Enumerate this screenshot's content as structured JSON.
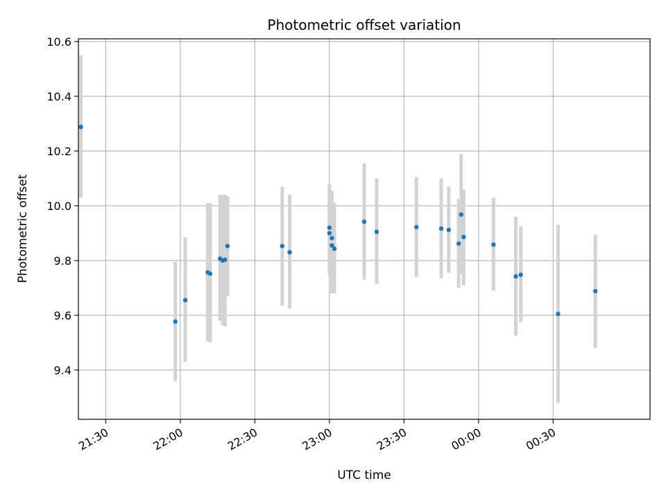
{
  "chart_data": {
    "type": "scatter",
    "title": "Photometric offset variation",
    "xlabel": "UTC time",
    "ylabel": "Photometric offset",
    "xlim": [
      "21:19",
      "01:09"
    ],
    "ylim": [
      9.22,
      10.61
    ],
    "grid": true,
    "x_ticks": [
      "21:30",
      "22:00",
      "22:30",
      "23:00",
      "23:30",
      "00:00",
      "00:30"
    ],
    "y_ticks": [
      9.4,
      9.6,
      9.8,
      10.0,
      10.2,
      10.4,
      10.6
    ],
    "y_tick_labels": [
      "9.4",
      "9.6",
      "9.8",
      "10.0",
      "10.2",
      "10.4",
      "10.6"
    ],
    "colors": {
      "points": "#1f77b4",
      "errorbars": "#d3d3d3",
      "grid": "#b0b0b0"
    },
    "points": [
      {
        "t": "21:20",
        "y": 10.288,
        "lo": 10.03,
        "hi": 10.55
      },
      {
        "t": "21:58",
        "y": 9.577,
        "lo": 9.36,
        "hi": 9.795
      },
      {
        "t": "22:02",
        "y": 9.655,
        "lo": 9.43,
        "hi": 9.885
      },
      {
        "t": "22:11",
        "y": 9.757,
        "lo": 9.505,
        "hi": 10.01
      },
      {
        "t": "22:12",
        "y": 9.752,
        "lo": 9.5,
        "hi": 10.01
      },
      {
        "t": "22:16",
        "y": 9.807,
        "lo": 9.58,
        "hi": 10.04
      },
      {
        "t": "22:17",
        "y": 9.8,
        "lo": 9.565,
        "hi": 10.04
      },
      {
        "t": "22:18",
        "y": 9.803,
        "lo": 9.56,
        "hi": 10.04
      },
      {
        "t": "22:19",
        "y": 9.853,
        "lo": 9.67,
        "hi": 10.035
      },
      {
        "t": "22:41",
        "y": 9.853,
        "lo": 9.635,
        "hi": 10.07
      },
      {
        "t": "22:44",
        "y": 9.83,
        "lo": 9.625,
        "hi": 10.04
      },
      {
        "t": "23:00",
        "y": 9.92,
        "lo": 9.77,
        "hi": 10.08
      },
      {
        "t": "23:00",
        "y": 9.9,
        "lo": 9.75,
        "hi": 10.07
      },
      {
        "t": "23:01",
        "y": 9.882,
        "lo": 9.72,
        "hi": 10.055
      },
      {
        "t": "23:01",
        "y": 9.855,
        "lo": 9.68,
        "hi": 10.045
      },
      {
        "t": "23:02",
        "y": 9.843,
        "lo": 9.68,
        "hi": 10.01
      },
      {
        "t": "23:14",
        "y": 9.942,
        "lo": 9.73,
        "hi": 10.155
      },
      {
        "t": "23:19",
        "y": 9.905,
        "lo": 9.715,
        "hi": 10.1
      },
      {
        "t": "23:35",
        "y": 9.922,
        "lo": 9.74,
        "hi": 10.105
      },
      {
        "t": "23:45",
        "y": 9.917,
        "lo": 9.735,
        "hi": 10.1
      },
      {
        "t": "23:48",
        "y": 9.912,
        "lo": 9.755,
        "hi": 10.07
      },
      {
        "t": "23:52",
        "y": 9.862,
        "lo": 9.7,
        "hi": 10.025
      },
      {
        "t": "23:53",
        "y": 9.968,
        "lo": 9.75,
        "hi": 10.19
      },
      {
        "t": "23:54",
        "y": 9.886,
        "lo": 9.71,
        "hi": 10.06
      },
      {
        "t": "00:06",
        "y": 9.858,
        "lo": 9.69,
        "hi": 10.03
      },
      {
        "t": "00:15",
        "y": 9.742,
        "lo": 9.525,
        "hi": 9.96
      },
      {
        "t": "00:17",
        "y": 9.748,
        "lo": 9.575,
        "hi": 9.925
      },
      {
        "t": "00:32",
        "y": 9.605,
        "lo": 9.28,
        "hi": 9.93
      },
      {
        "t": "00:47",
        "y": 9.688,
        "lo": 9.48,
        "hi": 9.895
      }
    ]
  }
}
